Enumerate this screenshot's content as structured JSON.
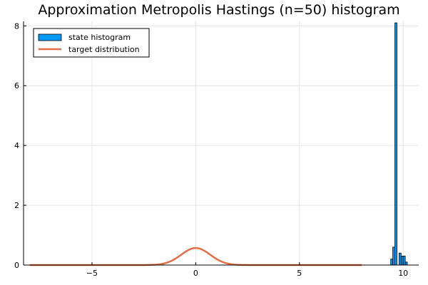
{
  "chart_data": {
    "type": "bar",
    "title": "Approximation Metropolis Hastings (n=50) histogram",
    "xlabel": "",
    "ylabel": "",
    "xlim": [
      -8.3,
      10.75
    ],
    "ylim": [
      0,
      8.15
    ],
    "xticks": [
      -5,
      0,
      5,
      10
    ],
    "yticks": [
      0,
      2,
      4,
      6,
      8
    ],
    "grid": true,
    "legend_position": "top-left",
    "series": [
      {
        "name": "state histogram",
        "kind": "histogram",
        "color": "#009AFA",
        "bin_width": 0.1,
        "bins": [
          {
            "x0": 9.4,
            "value": 0.2
          },
          {
            "x0": 9.5,
            "value": 0.6
          },
          {
            "x0": 9.6,
            "value": 8.1
          },
          {
            "x0": 9.7,
            "value": 0.0
          },
          {
            "x0": 9.8,
            "value": 0.4
          },
          {
            "x0": 9.9,
            "value": 0.3
          },
          {
            "x0": 10.0,
            "value": 0.3
          },
          {
            "x0": 10.1,
            "value": 0.1
          }
        ]
      },
      {
        "name": "target distribution",
        "kind": "line",
        "color": "#E26F46",
        "function": "normal_pdf",
        "mean": 0,
        "std": 0.7,
        "x_range": [
          -8,
          8
        ]
      }
    ]
  }
}
